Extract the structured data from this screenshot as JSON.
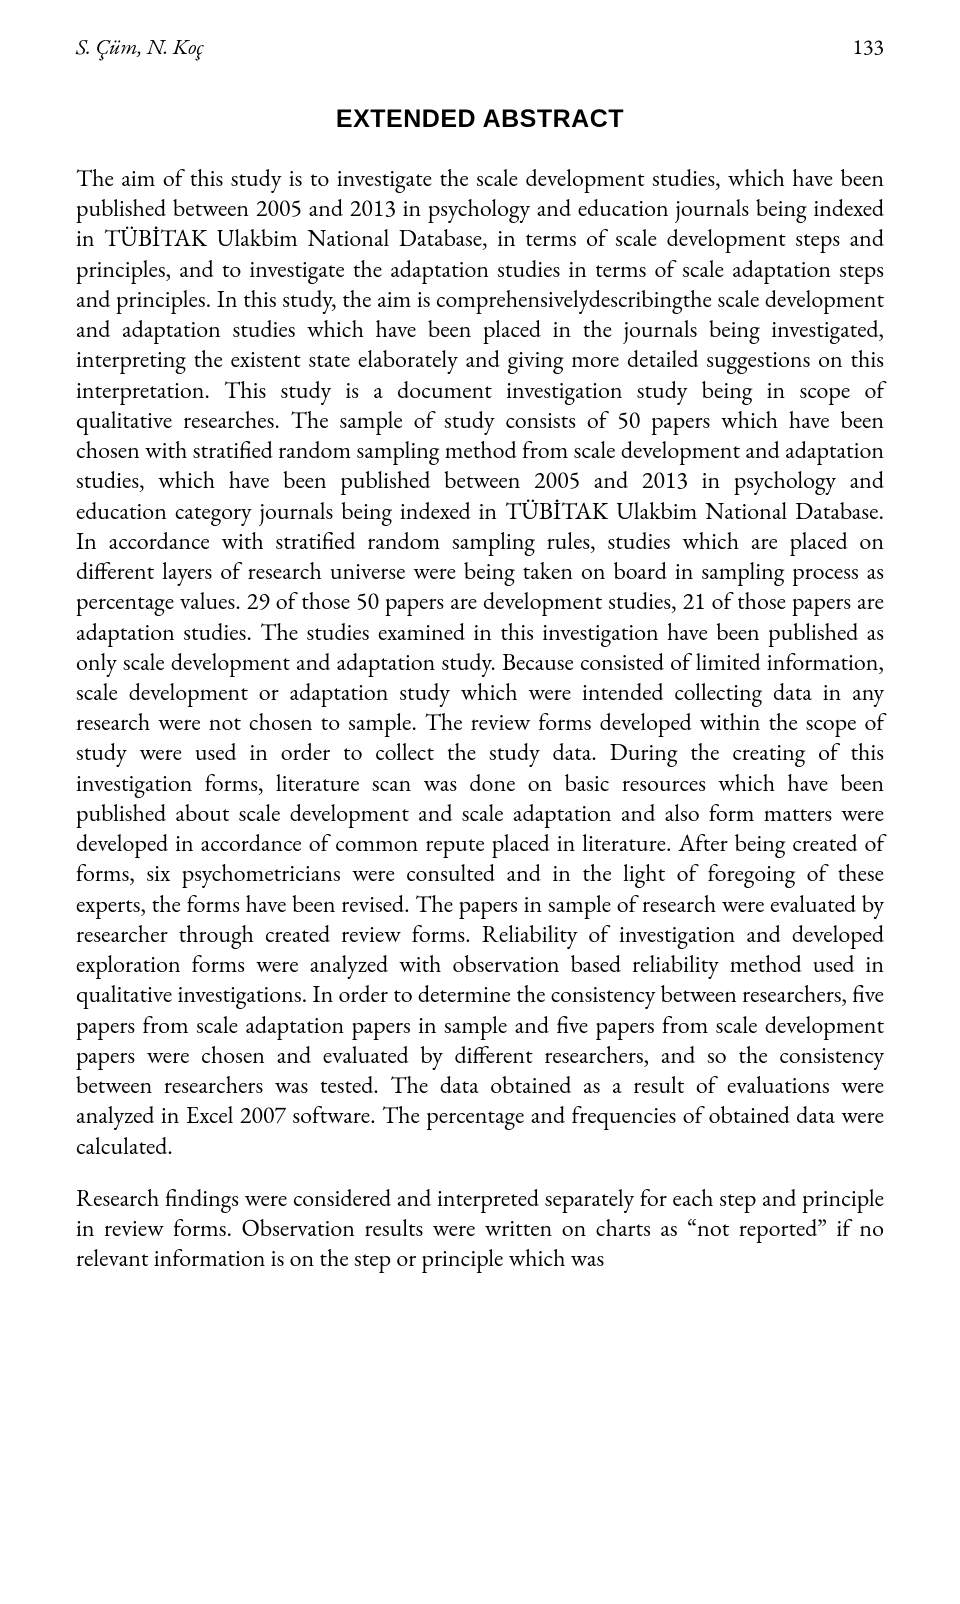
{
  "header": {
    "authors": "S. Çüm, N. Koç",
    "pageNumber": "133"
  },
  "title": "EXTENDED ABSTRACT",
  "paragraphs": {
    "p1": "The aim of this study is to investigate the scale development studies, which have been published between 2005 and 2013 in psychology and education journals being indexed in TÜBİTAK Ulakbim National Database, in terms of scale development steps and principles, and to investigate the adaptation studies in terms of scale adaptation steps and principles. In this study, the aim is comprehensivelydescribingthe scale development and adaptation studies which have been placed in the journals being investigated, interpreting the existent state elaborately and giving more detailed suggestions on this interpretation. This study is a document investigation study being in scope of qualitative researches. The sample of study consists of 50 papers which have been chosen with stratified random sampling method from scale development and adaptation studies, which have been published between 2005 and 2013 in psychology and education category journals being indexed in TÜBİTAK Ulakbim National Database. In accordance with stratified random sampling rules, studies which are placed on different layers of research universe were being taken on board in sampling process as percentage values. 29 of those 50 papers are development studies, 21 of those papers are adaptation studies. The studies examined in this investigation have been published as only scale development and adaptation study. Because consisted of limited information, scale development or adaptation study which were intended collecting data in any research were not chosen to sample. The review forms developed within the scope of study were used in order to collect the study data. During the creating of this investigation forms, literature scan was done on basic resources which have been published about scale development and scale adaptation and also form matters were developed in accordance of common repute placed in literature. After being created of forms, six psychometricians were consulted and in the light of foregoing of these experts, the forms have been revised. The papers in sample of research were evaluated by researcher through created review forms. Reliability of investigation and developed exploration forms were analyzed with observation based reliability method used in qualitative investigations. In order to determine the consistency between researchers, five papers from scale adaptation papers in sample and five papers from scale development papers were chosen and evaluated by different researchers, and so the consistency between researchers was tested. The data obtained as a result of evaluations were analyzed in Excel 2007 software. The percentage and frequencies of obtained data were calculated.",
    "p2": "Research findings were considered and interpreted separately for each step and principle in review forms. Observation results were written on charts as “not reported” if no relevant information is on the step or principle which was"
  }
}
